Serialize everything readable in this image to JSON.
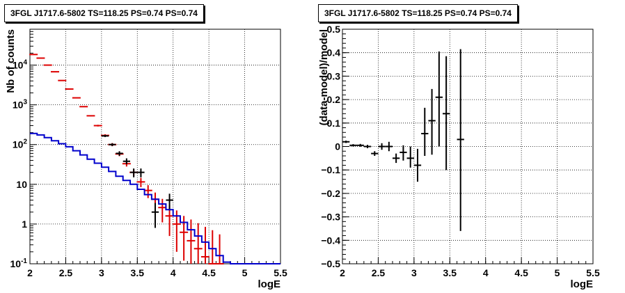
{
  "chart_data": [
    {
      "type": "scatter",
      "title": "3FGL J1717.6-5802 TS=118.25 PS=0.74 PS=0.74",
      "xlabel": "logE",
      "ylabel": "Nb of counts",
      "xlim": [
        2,
        5.5
      ],
      "ylim": [
        0.1,
        80000
      ],
      "yscale": "log",
      "grid": true,
      "xticks": [
        "2",
        "2.5",
        "3",
        "3.5",
        "4",
        "4.5",
        "5",
        "5.5"
      ],
      "yticks": [
        "10^-1",
        "1",
        "10",
        "10^2",
        "10^3",
        "10^4"
      ],
      "series": [
        {
          "color": "#dd0000",
          "type": "errorbar",
          "points": [
            {
              "x": 2.05,
              "y": 18500,
              "lo": 18300,
              "hi": 18700
            },
            {
              "x": 2.15,
              "y": 15000,
              "lo": 14800,
              "hi": 15200
            },
            {
              "x": 2.25,
              "y": 10000,
              "lo": 9900,
              "hi": 10100
            },
            {
              "x": 2.35,
              "y": 6800,
              "lo": 6700,
              "hi": 6900
            },
            {
              "x": 2.45,
              "y": 4100,
              "lo": 4050,
              "hi": 4150
            },
            {
              "x": 2.55,
              "y": 2500,
              "lo": 2470,
              "hi": 2530
            },
            {
              "x": 2.65,
              "y": 1500,
              "lo": 1480,
              "hi": 1520
            },
            {
              "x": 2.75,
              "y": 900,
              "lo": 880,
              "hi": 920
            },
            {
              "x": 2.85,
              "y": 530,
              "lo": 515,
              "hi": 545
            },
            {
              "x": 2.95,
              "y": 300,
              "lo": 285,
              "hi": 315
            },
            {
              "x": 3.05,
              "y": 170,
              "lo": 158,
              "hi": 182
            },
            {
              "x": 3.15,
              "y": 100,
              "lo": 91,
              "hi": 109
            },
            {
              "x": 3.25,
              "y": 58,
              "lo": 51,
              "hi": 65
            },
            {
              "x": 3.35,
              "y": 33,
              "lo": 28,
              "hi": 38
            },
            {
              "x": 3.45,
              "y": 20,
              "lo": 16,
              "hi": 24
            },
            {
              "x": 3.55,
              "y": 11.5,
              "lo": 8.5,
              "hi": 14.5
            },
            {
              "x": 3.65,
              "y": 7,
              "lo": 4.5,
              "hi": 9.5
            },
            {
              "x": 3.75,
              "y": 4.2,
              "lo": 2.3,
              "hi": 6.2
            },
            {
              "x": 3.85,
              "y": 2.6,
              "lo": 1.1,
              "hi": 4.3
            },
            {
              "x": 3.95,
              "y": 1.6,
              "lo": 0.5,
              "hi": 3.0
            },
            {
              "x": 4.05,
              "y": 1.0,
              "lo": 0.2,
              "hi": 2.2
            },
            {
              "x": 4.15,
              "y": 0.62,
              "lo": 0.12,
              "hi": 1.6
            },
            {
              "x": 4.25,
              "y": 0.38,
              "lo": 0.1,
              "hi": 1.3
            },
            {
              "x": 4.35,
              "y": 0.24,
              "lo": 0.1,
              "hi": 1.05
            },
            {
              "x": 4.45,
              "y": 0.15,
              "lo": 0.1,
              "hi": 0.85
            },
            {
              "x": 4.55,
              "y": 0.1,
              "lo": 0.1,
              "hi": 0.7
            },
            {
              "x": 4.65,
              "y": 0.1,
              "lo": 0.1,
              "hi": 0.55
            }
          ]
        },
        {
          "color": "#000000",
          "type": "errorbar",
          "points": [
            {
              "x": 3.05,
              "y": 165,
              "lo": 155,
              "hi": 175,
              "xlo": 3.0,
              "xhi": 3.1
            },
            {
              "x": 3.15,
              "y": 100,
              "lo": 92,
              "hi": 108,
              "xlo": 3.1,
              "xhi": 3.2
            },
            {
              "x": 3.25,
              "y": 60,
              "lo": 52,
              "hi": 68,
              "xlo": 3.2,
              "xhi": 3.3
            },
            {
              "x": 3.35,
              "y": 38,
              "lo": 32,
              "hi": 45,
              "xlo": 3.3,
              "xhi": 3.4
            },
            {
              "x": 3.45,
              "y": 20,
              "lo": 15,
              "hi": 25,
              "xlo": 3.4,
              "xhi": 3.5
            },
            {
              "x": 3.55,
              "y": 20,
              "lo": 15,
              "hi": 25,
              "xlo": 3.5,
              "xhi": 3.6
            },
            {
              "x": 3.75,
              "y": 2,
              "lo": 0.8,
              "hi": 3.4,
              "xlo": 3.7,
              "xhi": 3.8
            },
            {
              "x": 3.95,
              "y": 4,
              "lo": 2.2,
              "hi": 5.8,
              "xlo": 3.9,
              "xhi": 4.0
            }
          ]
        },
        {
          "color": "#0000cc",
          "type": "step",
          "edges": [
            2.0,
            2.1,
            2.2,
            2.3,
            2.4,
            2.5,
            2.6,
            2.7,
            2.8,
            2.9,
            3.0,
            3.1,
            3.2,
            3.3,
            3.4,
            3.5,
            3.6,
            3.7,
            3.8,
            3.9,
            4.0,
            4.1,
            4.2,
            4.3,
            4.4,
            4.5,
            4.6,
            4.7,
            4.8,
            5.5
          ],
          "values": [
            190,
            175,
            150,
            125,
            105,
            88,
            70,
            55,
            43,
            34,
            27,
            21,
            16,
            12.5,
            10,
            7.5,
            5.5,
            4.2,
            3.2,
            2.3,
            1.6,
            1.1,
            0.72,
            0.5,
            0.35,
            0.24,
            0.16,
            0.11,
            0.1
          ]
        }
      ]
    },
    {
      "type": "scatter",
      "title": "3FGL J1717.6-5802 TS=118.25 PS=0.74 PS=0.74",
      "xlabel": "logE",
      "ylabel": "(data-model)/model",
      "xlim": [
        2,
        5.5
      ],
      "ylim": [
        -0.5,
        0.5
      ],
      "grid": true,
      "xticks": [
        "2",
        "2.5",
        "3",
        "3.5",
        "4",
        "4.5",
        "5",
        "5.5"
      ],
      "yticks": [
        "−0.5",
        "−0.4",
        "−0.3",
        "−0.2",
        "−0.1",
        "0",
        "0.1",
        "0.2",
        "0.3",
        "0.4",
        "0.5"
      ],
      "series": [
        {
          "color": "#000000",
          "type": "errorbar",
          "points": [
            {
              "x": 2.05,
              "y": 0.02,
              "lo": 0.015,
              "hi": 0.025,
              "xlo": 2.0,
              "xhi": 2.1
            },
            {
              "x": 2.15,
              "y": 0.005,
              "lo": 0.0,
              "hi": 0.01,
              "xlo": 2.1,
              "xhi": 2.2
            },
            {
              "x": 2.25,
              "y": 0.005,
              "lo": -0.001,
              "hi": 0.011,
              "xlo": 2.2,
              "xhi": 2.3
            },
            {
              "x": 2.35,
              "y": 0.0,
              "lo": -0.007,
              "hi": 0.007,
              "xlo": 2.3,
              "xhi": 2.4
            },
            {
              "x": 2.45,
              "y": -0.03,
              "lo": -0.04,
              "hi": -0.02,
              "xlo": 2.4,
              "xhi": 2.5
            },
            {
              "x": 2.55,
              "y": 0.0,
              "lo": -0.014,
              "hi": 0.014,
              "xlo": 2.5,
              "xhi": 2.6
            },
            {
              "x": 2.65,
              "y": 0.0,
              "lo": -0.02,
              "hi": 0.02,
              "xlo": 2.6,
              "xhi": 2.7
            },
            {
              "x": 2.75,
              "y": -0.05,
              "lo": -0.07,
              "hi": -0.03,
              "xlo": 2.7,
              "xhi": 2.8
            },
            {
              "x": 2.85,
              "y": -0.025,
              "lo": -0.06,
              "hi": 0.005,
              "xlo": 2.8,
              "xhi": 2.9
            },
            {
              "x": 2.95,
              "y": -0.05,
              "lo": -0.09,
              "hi": 0.0,
              "xlo": 2.9,
              "xhi": 3.0
            },
            {
              "x": 3.05,
              "y": -0.08,
              "lo": -0.15,
              "hi": -0.01,
              "xlo": 3.0,
              "xhi": 3.1
            },
            {
              "x": 3.15,
              "y": 0.055,
              "lo": -0.04,
              "hi": 0.165,
              "xlo": 3.1,
              "xhi": 3.2
            },
            {
              "x": 3.25,
              "y": 0.11,
              "lo": -0.035,
              "hi": 0.245,
              "xlo": 3.2,
              "xhi": 3.3
            },
            {
              "x": 3.35,
              "y": 0.21,
              "lo": 0.0,
              "hi": 0.405,
              "xlo": 3.3,
              "xhi": 3.4
            },
            {
              "x": 3.45,
              "y": 0.14,
              "lo": -0.1,
              "hi": 0.385,
              "xlo": 3.4,
              "xhi": 3.5
            },
            {
              "x": 3.65,
              "y": 0.03,
              "lo": -0.36,
              "hi": 0.415,
              "xlo": 3.6,
              "xhi": 3.7
            }
          ]
        }
      ]
    }
  ]
}
